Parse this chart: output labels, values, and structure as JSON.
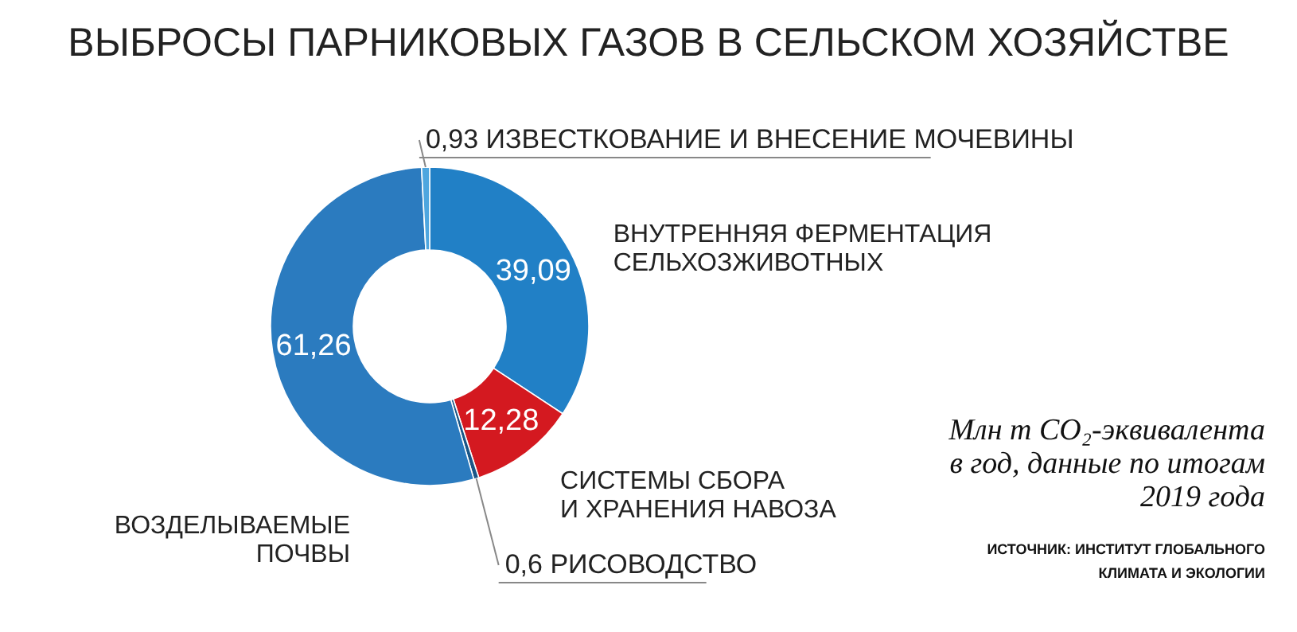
{
  "chart_data": {
    "type": "donut",
    "title": "ВЫБРОСЫ ПАРНИКОВЫХ ГАЗОВ В СЕЛЬСКОМ ХОЗЯЙСТВЕ",
    "categories": [
      "ВНУТРЕННЯЯ ФЕРМЕНТАЦИЯ\nСЕЛЬХОЗЖИВОТНЫХ",
      "СИСТЕМЫ СБОРА\nИ ХРАНЕНИЯ НАВОЗА",
      "РИСОВОДСТВО",
      "ВОЗДЕЛЫВАЕМЫЕ\nПОЧВЫ",
      "ИЗВЕСТКОВАНИЕ И ВНЕСЕНИЕ МОЧЕВИНЫ"
    ],
    "values": [
      39.09,
      12.28,
      0.6,
      61.26,
      0.93
    ],
    "value_labels": [
      "39,09",
      "12,28",
      "0,6",
      "61,26",
      "0,93"
    ],
    "colors": [
      "#2180c6",
      "#d41920",
      "#1a5687",
      "#2b7bbf",
      "#4ea6df"
    ],
    "legend": false,
    "annotations": [
      "Млн т CO₂-эквивалента\nв год, данные по итогам\n2019 года",
      "ИСТОЧНИК: ИНСТИТУТ ГЛОБАЛЬНОГО\nКЛИМАТА И ЭКОЛОГИИ"
    ]
  }
}
